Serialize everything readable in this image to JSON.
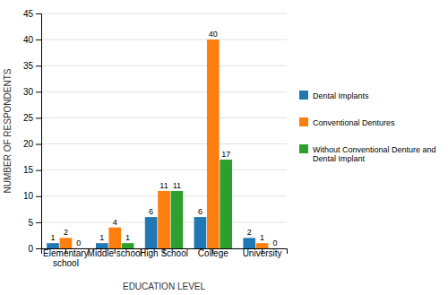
{
  "chart_data": {
    "type": "bar",
    "xlabel": "EDUCATION LEVEL",
    "ylabel": "NUMBER OF RESPONDENTS",
    "categories": [
      "Elementary\nschool",
      "Middle school",
      "High School",
      "College",
      "University"
    ],
    "series": [
      {
        "name": "Dental Implants",
        "values": [
          1,
          1,
          6,
          6,
          2
        ]
      },
      {
        "name": "Conventional Dentures",
        "values": [
          2,
          4,
          11,
          40,
          1
        ]
      },
      {
        "name": "Without Conventional Denture and\nDental Implant",
        "values": [
          0,
          1,
          11,
          17,
          0
        ]
      }
    ],
    "ylim": [
      0,
      45
    ],
    "yticks": [
      0,
      5,
      10,
      15,
      20,
      25,
      30,
      35,
      40,
      45
    ],
    "grid": true,
    "data_labels": true,
    "legend": "right"
  }
}
